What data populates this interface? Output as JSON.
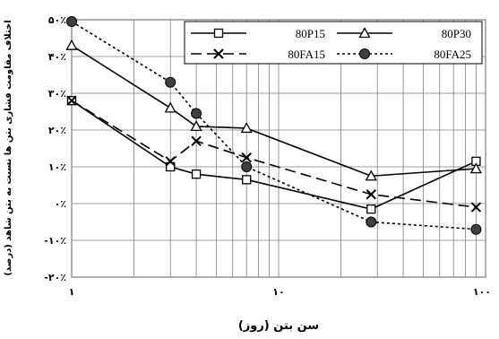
{
  "chart_data": {
    "type": "line",
    "xscale": "log",
    "xlim": [
      1,
      100
    ],
    "ylim": [
      -20,
      50
    ],
    "x_tick_labels": [
      "۱",
      "۱۰",
      "۱۰۰"
    ],
    "x_tick_values": [
      1,
      10,
      100
    ],
    "y_tick_labels": [
      "۵۰٪",
      "۴۰٪",
      "۳۰٪",
      "۲۰٪",
      "۱۰٪",
      "۰٪",
      "-۱۰٪",
      "-۲۰٪"
    ],
    "y_tick_values": [
      50,
      40,
      30,
      20,
      10,
      0,
      -10,
      -20
    ],
    "xlabel": "سن بتن (روز)",
    "ylabel": "اختلاف مقاومت فشاری بتن ها نسبت به بتن شاهد (درصد)",
    "grid": "vertical-log-and-horizontal",
    "legend_position": "top-right",
    "series": [
      {
        "name": "80P15",
        "marker": "square",
        "line": "solid",
        "color": "#000000",
        "x": [
          1,
          3,
          4,
          7,
          28,
          90
        ],
        "y": [
          28,
          10,
          8,
          6.5,
          -1.5,
          11.5
        ]
      },
      {
        "name": "80P30",
        "marker": "triangle",
        "line": "solid",
        "color": "#000000",
        "x": [
          1,
          3,
          4,
          7,
          28,
          90
        ],
        "y": [
          43,
          26,
          21,
          20.5,
          7.5,
          9.5
        ]
      },
      {
        "name": "80FA15",
        "marker": "x",
        "line": "longdash",
        "color": "#000000",
        "x": [
          1,
          3,
          4,
          7,
          28,
          90
        ],
        "y": [
          28,
          11.5,
          17,
          12.5,
          2.5,
          -1
        ]
      },
      {
        "name": "80FA25",
        "marker": "circle",
        "line": "shortdash",
        "color": "#000000",
        "x": [
          1,
          3,
          4,
          7,
          28,
          90
        ],
        "y": [
          49.5,
          33,
          24.5,
          10,
          -5,
          -7
        ]
      }
    ]
  }
}
